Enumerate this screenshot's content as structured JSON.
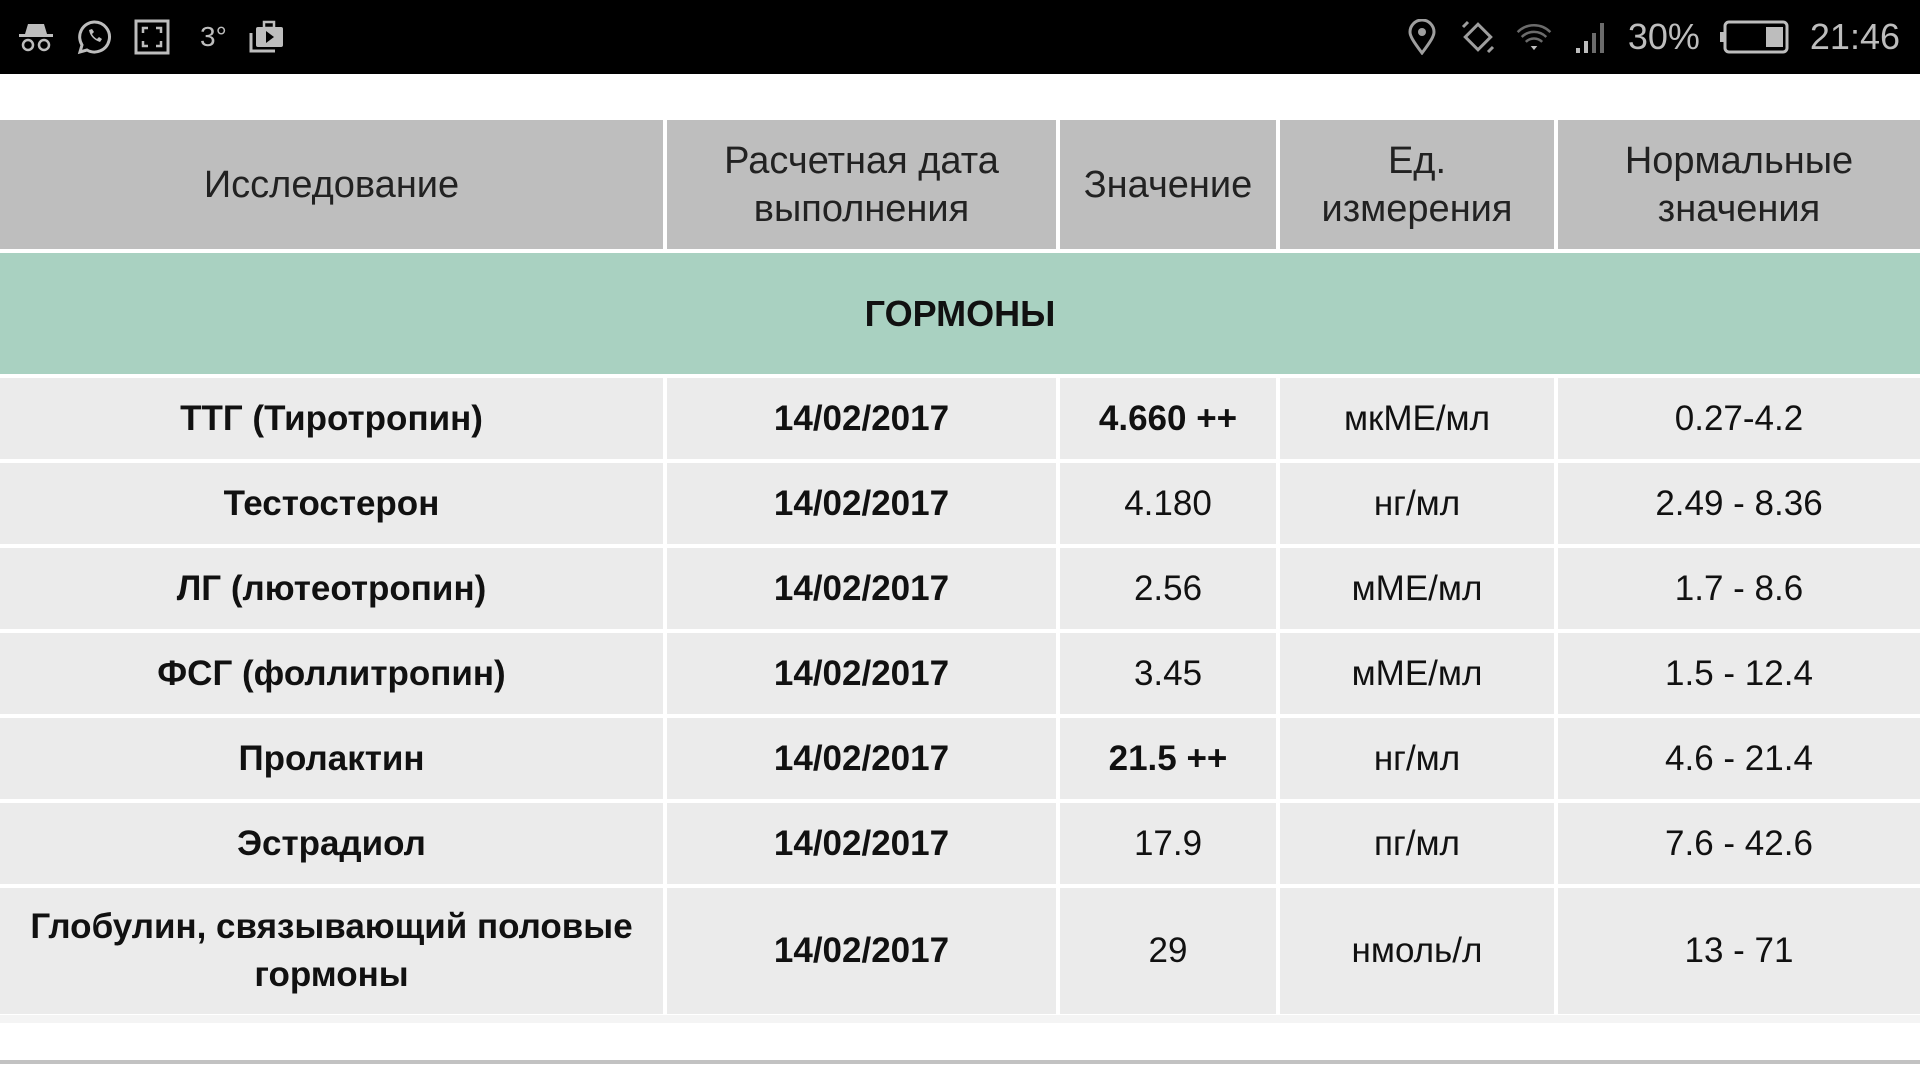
{
  "status_bar": {
    "left_icons": [
      "incognito-icon",
      "whatsapp-icon",
      "screenshot-icon",
      "weather-icon",
      "briefcase-play-icon"
    ],
    "temperature": "3°",
    "battery": "30%",
    "battery_level": 0.3,
    "time": "21:46",
    "right_icons": [
      "location-icon",
      "rotate-icon",
      "wifi-icon",
      "signal-icon",
      "battery-icon"
    ]
  },
  "table": {
    "headers": [
      "Исследование",
      "Расчетная дата выполнения",
      "Значение",
      "Ед. измерения",
      "Нормальные значения"
    ],
    "section": "ГОРМОНЫ",
    "rows": [
      {
        "test": "ТТГ (Тиротропин)",
        "date": "14/02/2017",
        "value": "4.660 ++",
        "unit": "мкМЕ/мл",
        "norm": "0.27-4.2",
        "flag": true
      },
      {
        "test": "Тестостерон",
        "date": "14/02/2017",
        "value": "4.180",
        "unit": "нг/мл",
        "norm": "2.49 - 8.36",
        "flag": false
      },
      {
        "test": "ЛГ (лютеотропин)",
        "date": "14/02/2017",
        "value": "2.56",
        "unit": "мМЕ/мл",
        "norm": "1.7 - 8.6",
        "flag": false
      },
      {
        "test": "ФСГ (фоллитропин)",
        "date": "14/02/2017",
        "value": "3.45",
        "unit": "мМЕ/мл",
        "norm": "1.5 - 12.4",
        "flag": false
      },
      {
        "test": "Пролактин",
        "date": "14/02/2017",
        "value": "21.5 ++",
        "unit": "нг/мл",
        "norm": "4.6 - 21.4",
        "flag": true
      },
      {
        "test": "Эстрадиол",
        "date": "14/02/2017",
        "value": "17.9",
        "unit": "пг/мл",
        "norm": "7.6 - 42.6",
        "flag": false
      },
      {
        "test": "Глобулин, связывающий половые гормоны",
        "date": "14/02/2017",
        "value": "29",
        "unit": "нмоль/л",
        "norm": "13 - 71",
        "flag": false
      }
    ]
  },
  "colors": {
    "header": "#bebebe",
    "section": "#a9d1c1",
    "row": "#ebebeb"
  }
}
